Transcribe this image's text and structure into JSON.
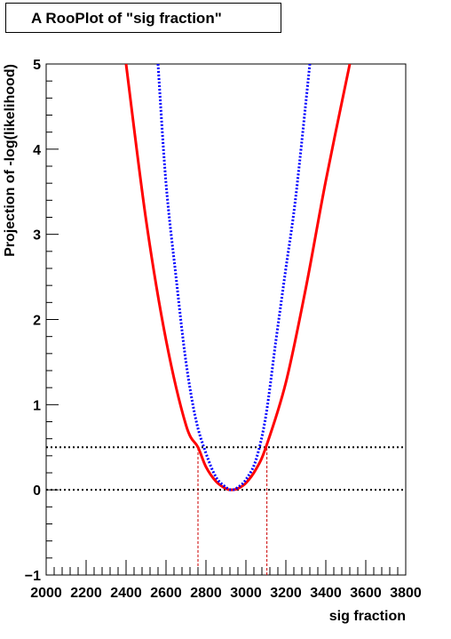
{
  "chart_data": {
    "type": "line",
    "title": "A RooPlot of \"sig fraction\"",
    "xlabel": "sig fraction",
    "ylabel": "Projection of -log(likelihood)",
    "xlim": [
      2000,
      3800
    ],
    "ylim": [
      -1,
      5
    ],
    "x_ticks": [
      "2000",
      "2200",
      "2400",
      "2600",
      "2800",
      "3000",
      "3200",
      "3400",
      "3600",
      "3800"
    ],
    "y_ticks": [
      "−1",
      "0",
      "1",
      "2",
      "3",
      "4",
      "5"
    ],
    "grid": false,
    "minimum_x": 2930,
    "series": [
      {
        "style": "solid",
        "color": "#ff0000",
        "x": [
          2400,
          2500,
          2600,
          2700,
          2760,
          2800,
          2850,
          2900,
          2930,
          2960,
          3000,
          3050,
          3100,
          3200,
          3300,
          3400,
          3520
        ],
        "y": [
          5.0,
          3.17,
          1.76,
          0.76,
          0.5,
          0.27,
          0.1,
          0.014,
          0.0,
          0.016,
          0.08,
          0.24,
          0.5,
          1.26,
          2.37,
          3.63,
          5.0
        ]
      },
      {
        "style": "dotted",
        "color": "#0000ff",
        "x": [
          2560,
          2600,
          2650,
          2700,
          2750,
          2800,
          2850,
          2900,
          2930,
          2960,
          3000,
          3050,
          3100,
          3150,
          3200,
          3250,
          3320
        ],
        "y": [
          5.0,
          3.6,
          2.5,
          1.5,
          0.82,
          0.43,
          0.15,
          0.03,
          0.0,
          0.03,
          0.12,
          0.35,
          0.87,
          1.75,
          2.6,
          3.45,
          5.0
        ]
      }
    ],
    "reference_lines": [
      {
        "orientation": "horizontal",
        "y": 0.5,
        "style": "dotted",
        "color": "#000000"
      },
      {
        "orientation": "horizontal",
        "y": 0,
        "style": "dotted",
        "color": "#000000"
      },
      {
        "orientation": "vertical",
        "x": 2760,
        "y_from": -1,
        "y_to": 0.5,
        "style": "dashed",
        "color": "#cc0000"
      },
      {
        "orientation": "vertical",
        "x": 3105,
        "y_from": -1,
        "y_to": 0.5,
        "style": "dashed",
        "color": "#cc0000"
      }
    ]
  }
}
